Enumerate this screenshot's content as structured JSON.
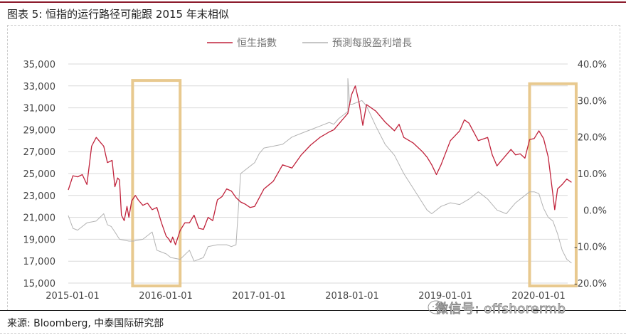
{
  "header": {
    "title": "图表 5:  恒指的运行路径可能跟 2015 年末相似"
  },
  "footer": {
    "source": "来源:  Bloomberg,  中泰国际研究部",
    "watermark": "微信号: offshorermb"
  },
  "colors": {
    "hsi": "#c0223b",
    "eps": "#b3b3b3",
    "highlight": "#e8c98f",
    "grid": "#d9d9d9",
    "title_rule": "#8b1a2b"
  },
  "chart_data": {
    "type": "line",
    "title": "恒指的运行路径可能跟 2015 年末相似",
    "legend": [
      "恒生指數",
      "預測每股盈利增長"
    ],
    "legend_position": "top",
    "grid": true,
    "xlabel": "",
    "ylabel_left": "恒生指數",
    "ylabel_right": "預測每股盈利增長",
    "x_ticks": [
      "2015-01-01",
      "2016-01-01",
      "2017-01-01",
      "2018-01-01",
      "2019-01-01",
      "2020-01-01"
    ],
    "y_left_ticks": [
      "35,000",
      "33,000",
      "31,000",
      "29,000",
      "27,000",
      "25,000",
      "23,000",
      "21,000",
      "19,000",
      "17,000",
      "15,000"
    ],
    "y_right_ticks": [
      "40.0%",
      "30.0%",
      "20.0%",
      "10.0%",
      "0.0%",
      "-10.0%",
      "-20.0%"
    ],
    "ylim_left": [
      15000,
      35000
    ],
    "ylim_right": [
      -20,
      40
    ],
    "series": [
      {
        "name": "恒生指數",
        "axis": "left",
        "x": [
          2015.0,
          2015.05,
          2015.1,
          2015.15,
          2015.2,
          2015.25,
          2015.3,
          2015.35,
          2015.38,
          2015.42,
          2015.47,
          2015.5,
          2015.53,
          2015.55,
          2015.57,
          2015.6,
          2015.63,
          2015.65,
          2015.68,
          2015.72,
          2015.75,
          2015.8,
          2015.85,
          2015.9,
          2015.95,
          2016.0,
          2016.05,
          2016.08,
          2016.1,
          2016.12,
          2016.15,
          2016.2,
          2016.25,
          2016.3,
          2016.35,
          2016.4,
          2016.45,
          2016.5,
          2016.55,
          2016.6,
          2016.65,
          2016.7,
          2016.75,
          2016.8,
          2016.85,
          2016.9,
          2016.95,
          2017.0,
          2017.1,
          2017.2,
          2017.3,
          2017.4,
          2017.5,
          2017.6,
          2017.7,
          2017.8,
          2017.85,
          2017.9,
          2017.95,
          2018.0,
          2018.04,
          2018.08,
          2018.12,
          2018.16,
          2018.2,
          2018.3,
          2018.4,
          2018.5,
          2018.55,
          2018.6,
          2018.7,
          2018.8,
          2018.85,
          2018.9,
          2018.95,
          2019.0,
          2019.1,
          2019.2,
          2019.25,
          2019.3,
          2019.4,
          2019.5,
          2019.55,
          2019.6,
          2019.7,
          2019.75,
          2019.8,
          2019.85,
          2019.9,
          2019.95,
          2020.0,
          2020.05,
          2020.1,
          2020.15,
          2020.2,
          2020.22,
          2020.25,
          2020.3,
          2020.35,
          2020.4
        ],
        "values": [
          23500,
          24800,
          24700,
          24900,
          24000,
          27500,
          28300,
          27800,
          27500,
          26000,
          26200,
          23800,
          24600,
          24400,
          21200,
          20700,
          22000,
          21000,
          22500,
          23000,
          22600,
          22100,
          22300,
          21700,
          21900,
          20500,
          19300,
          19000,
          18700,
          19200,
          18500,
          19800,
          20500,
          20500,
          21200,
          20000,
          19900,
          21000,
          20700,
          22600,
          22900,
          23600,
          23400,
          22800,
          22400,
          22200,
          21900,
          22000,
          23600,
          24300,
          25800,
          25500,
          26700,
          27600,
          28300,
          28800,
          29000,
          29500,
          30000,
          30500,
          32200,
          33000,
          31500,
          29400,
          31300,
          30700,
          29700,
          28900,
          29500,
          28300,
          27800,
          27000,
          26500,
          25800,
          24900,
          25800,
          28000,
          28900,
          29900,
          29600,
          28000,
          28300,
          26700,
          25700,
          26700,
          27200,
          26700,
          26800,
          26400,
          28100,
          28200,
          28900,
          28200,
          26500,
          23100,
          21700,
          23600,
          24000,
          24500,
          24200
        ],
        "color": "#c0223b"
      },
      {
        "name": "預測每股盈利增長",
        "axis": "right",
        "unit": "%",
        "x": [
          2015.0,
          2015.05,
          2015.1,
          2015.15,
          2015.2,
          2015.3,
          2015.38,
          2015.42,
          2015.46,
          2015.5,
          2015.55,
          2015.65,
          2015.7,
          2015.8,
          2015.9,
          2015.95,
          2016.0,
          2016.05,
          2016.1,
          2016.2,
          2016.3,
          2016.35,
          2016.45,
          2016.5,
          2016.6,
          2016.7,
          2016.75,
          2016.8,
          2016.85,
          2016.95,
          2017.0,
          2017.02,
          2017.05,
          2017.1,
          2017.2,
          2017.3,
          2017.4,
          2017.5,
          2017.6,
          2017.7,
          2017.8,
          2017.85,
          2017.9,
          2017.95,
          2018.0,
          2018.0,
          2018.02,
          2018.05,
          2018.1,
          2018.15,
          2018.2,
          2018.3,
          2018.4,
          2018.5,
          2018.6,
          2018.7,
          2018.8,
          2018.85,
          2018.9,
          2019.0,
          2019.1,
          2019.2,
          2019.3,
          2019.4,
          2019.5,
          2019.6,
          2019.7,
          2019.8,
          2019.9,
          2019.95,
          2020.0,
          2020.05,
          2020.1,
          2020.15,
          2020.2,
          2020.25,
          2020.3,
          2020.35,
          2020.4
        ],
        "values": [
          -1.5,
          -5.0,
          -5.5,
          -4.5,
          -3.5,
          -3.0,
          -1.0,
          -4.0,
          -4.5,
          -6.0,
          -8.0,
          -8.5,
          -8.5,
          -8.0,
          -6.0,
          -11.0,
          -11.5,
          -12.0,
          -13.0,
          -13.5,
          -11.0,
          -14.0,
          -13.0,
          -10.0,
          -9.5,
          -9.5,
          -10.0,
          -9.5,
          10.0,
          12.0,
          13.0,
          14.0,
          15.5,
          17.0,
          17.5,
          18.0,
          20.0,
          21.0,
          22.0,
          23.0,
          24.0,
          23.5,
          25.0,
          26.0,
          27.0,
          36.0,
          29.0,
          29.0,
          29.5,
          30.0,
          28.5,
          23.0,
          18.0,
          15.0,
          10.0,
          6.0,
          2.0,
          0.0,
          -1.0,
          1.0,
          2.0,
          1.5,
          3.0,
          5.0,
          3.0,
          0.0,
          -1.0,
          2.0,
          4.0,
          5.0,
          5.0,
          4.5,
          0.5,
          -2.0,
          -3.0,
          -6.5,
          -11.0,
          -13.5,
          -14.5
        ],
        "color": "#b3b3b3"
      }
    ],
    "annotations": [
      {
        "type": "highlight_box",
        "x_start": 2015.69,
        "x_end": 2016.2,
        "y_top": 33500,
        "y_bottom": 15000
      },
      {
        "type": "highlight_box",
        "x_start": 2019.95,
        "x_end": 2020.45,
        "y_top": 33200,
        "y_bottom": 15000
      }
    ]
  }
}
